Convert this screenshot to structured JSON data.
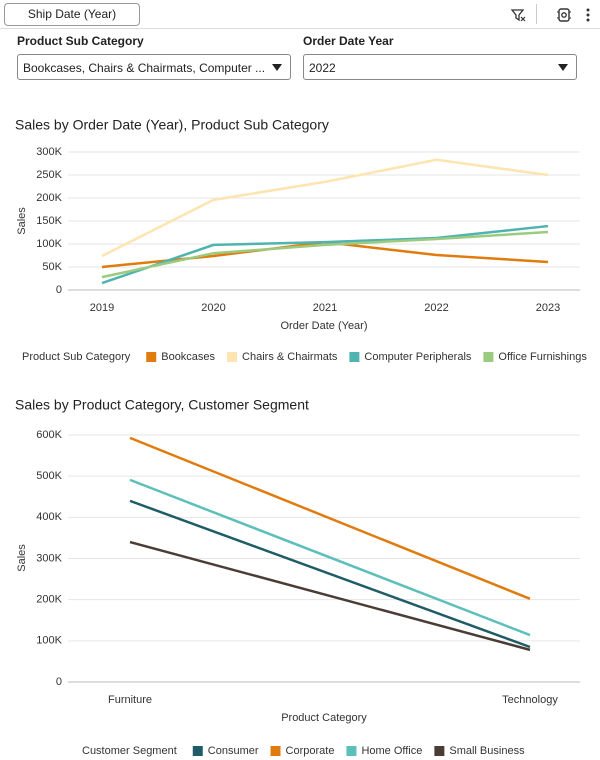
{
  "toolbar": {
    "button": "Ship Date (Year)"
  },
  "filters": [
    {
      "label": "Product Sub Category",
      "value": "Bookcases, Chairs & Chairmats, Computer ..."
    },
    {
      "label": "Order Date Year",
      "value": "2022"
    }
  ],
  "chart_data": [
    {
      "type": "line",
      "title": "Sales by Order Date (Year), Product Sub Category",
      "x_label": "Order Date (Year)",
      "y_label": "Sales",
      "legend_title": "Product Sub Category",
      "categories": [
        "2019",
        "2020",
        "2021",
        "2022",
        "2023"
      ],
      "ylim": [
        0,
        300000
      ],
      "yticks": [
        0,
        {
          "value": 50000,
          "label": "50K"
        },
        {
          "value": 100000,
          "label": "100K"
        },
        {
          "value": 150000,
          "label": "150K"
        },
        {
          "value": 200000,
          "label": "200K"
        },
        {
          "value": 250000,
          "label": "250K"
        },
        {
          "value": 300000,
          "label": "300K"
        }
      ],
      "grid": true,
      "series": [
        {
          "name": "Bookcases",
          "color": "#e07b0e",
          "values": [
            50000,
            74000,
            104000,
            76000,
            61000
          ]
        },
        {
          "name": "Chairs & Chairmats",
          "color": "#fde4b0",
          "values": [
            74000,
            196000,
            235000,
            283000,
            250000
          ]
        },
        {
          "name": "Computer Peripherals",
          "color": "#4fb3b0",
          "values": [
            15000,
            98000,
            104000,
            113000,
            139000
          ]
        },
        {
          "name": "Office Furnishings",
          "color": "#9bcb7f",
          "values": [
            28000,
            80000,
            98000,
            111000,
            126000
          ]
        }
      ]
    },
    {
      "type": "line",
      "title": "Sales by Product Category, Customer Segment",
      "x_label": "Product Category",
      "y_label": "Sales",
      "legend_title": "Customer Segment",
      "categories": [
        "Furniture",
        "Technology"
      ],
      "ylim": [
        0,
        600000
      ],
      "yticks": [
        0,
        {
          "value": 100000,
          "label": "100K"
        },
        {
          "value": 200000,
          "label": "200K"
        },
        {
          "value": 300000,
          "label": "300K"
        },
        {
          "value": 400000,
          "label": "400K"
        },
        {
          "value": 500000,
          "label": "500K"
        },
        {
          "value": 600000,
          "label": "600K"
        }
      ],
      "grid": true,
      "series": [
        {
          "name": "Consumer",
          "color": "#1f5c66",
          "values": [
            440000,
            85000
          ]
        },
        {
          "name": "Corporate",
          "color": "#e07b0e",
          "values": [
            593000,
            202000
          ]
        },
        {
          "name": "Home Office",
          "color": "#5cbfba",
          "values": [
            491000,
            114000
          ]
        },
        {
          "name": "Small Business",
          "color": "#4a3d36",
          "values": [
            340000,
            78000
          ]
        }
      ]
    }
  ]
}
